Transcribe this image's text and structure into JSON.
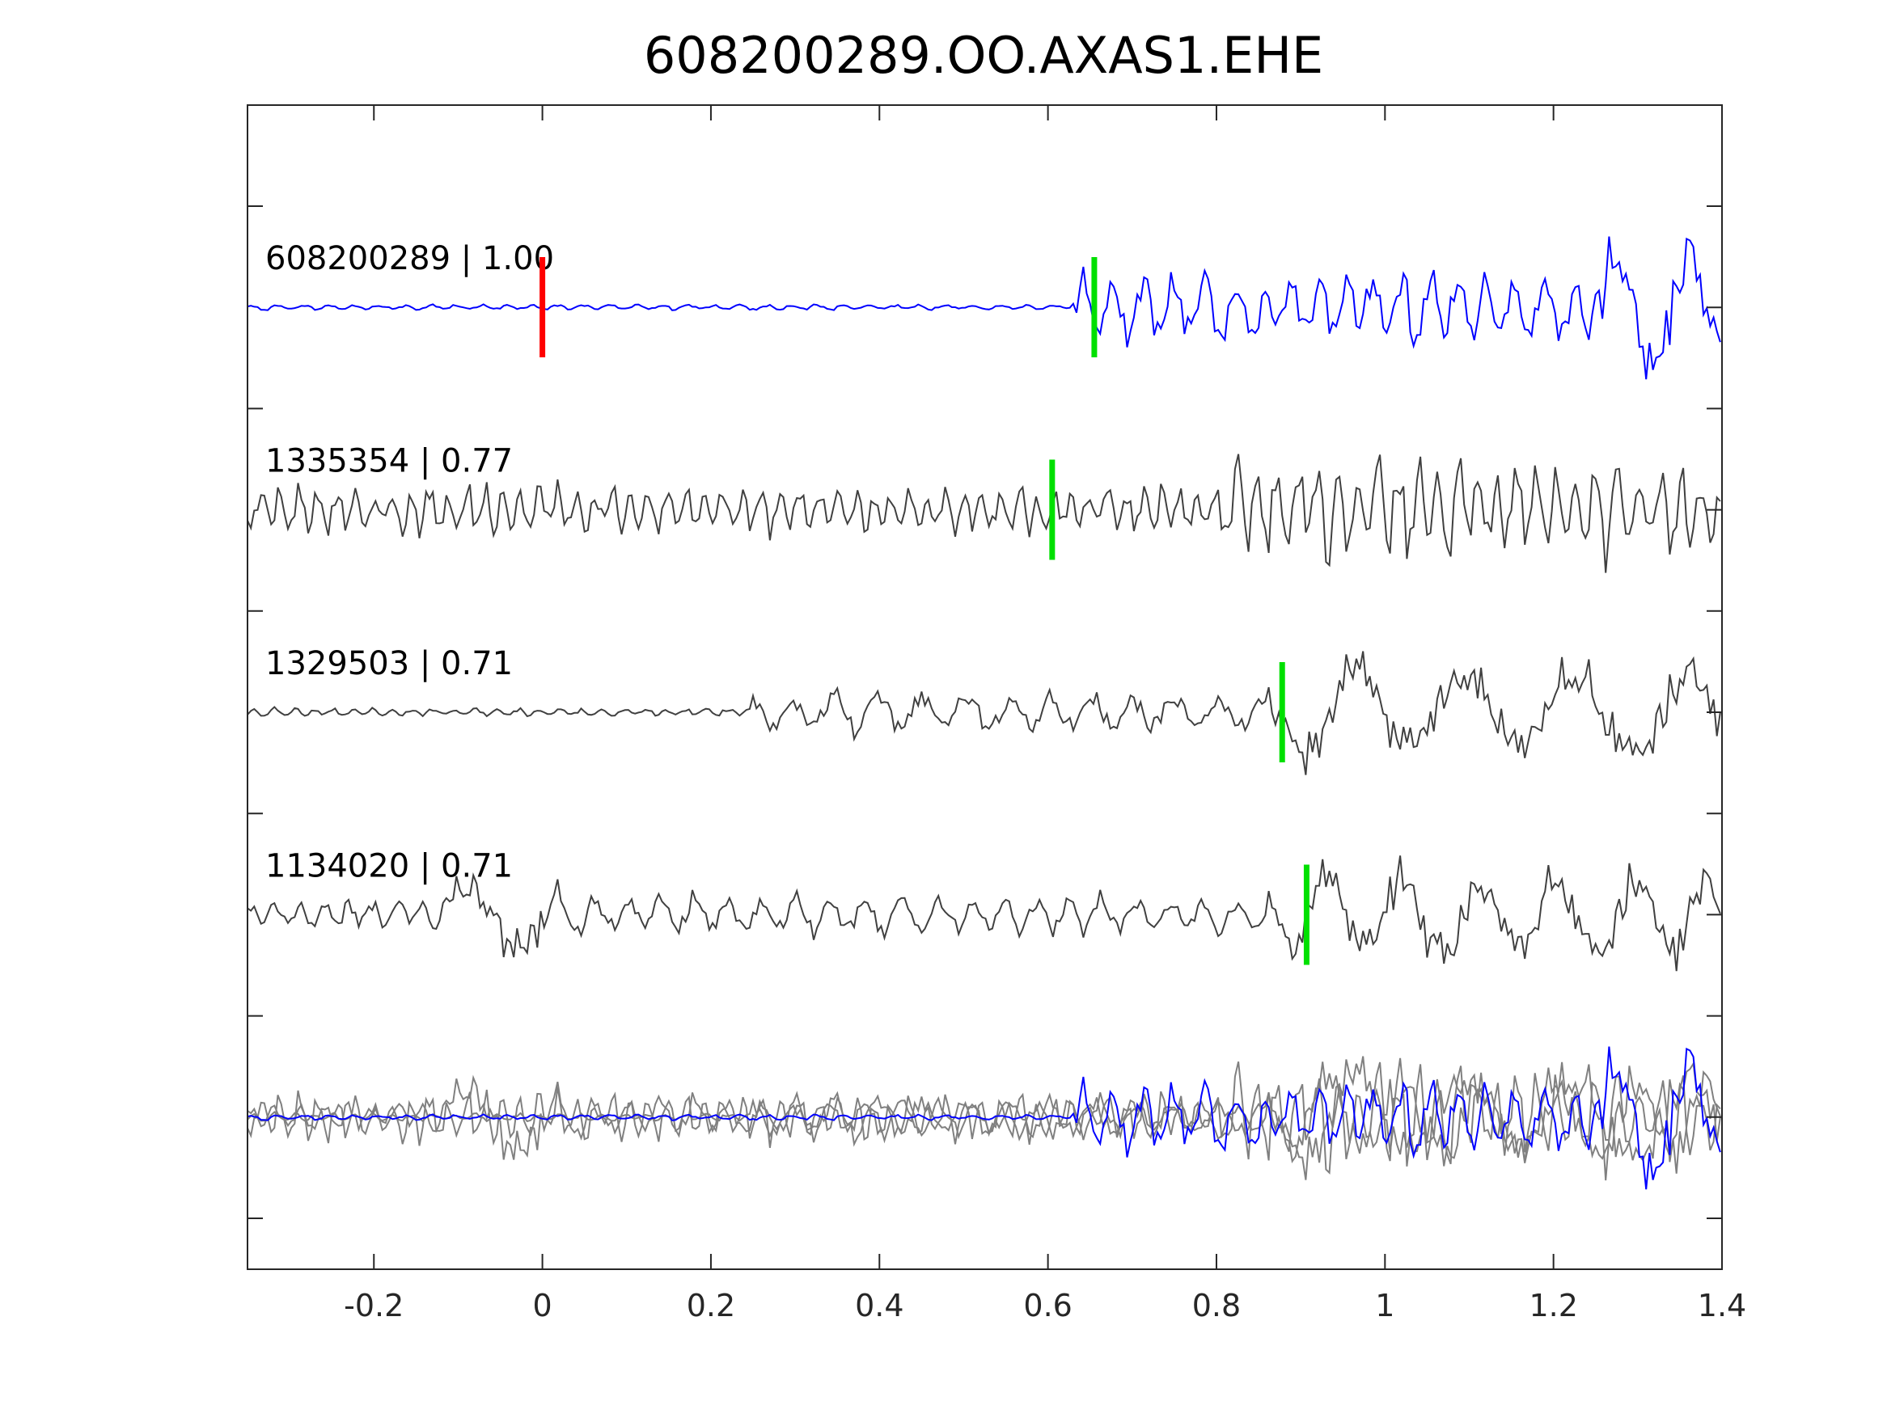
{
  "chart_data": {
    "type": "line",
    "title": "608200289.OO.AXAS1.EHE",
    "xlabel": "",
    "ylabel": "",
    "xlim": [
      -0.35,
      1.4
    ],
    "xticks": [
      -0.2,
      0,
      0.2,
      0.4,
      0.6,
      0.8,
      1,
      1.2,
      1.4
    ],
    "xtick_labels": [
      "-0.2",
      "0",
      "0.2",
      "0.4",
      "0.6",
      "0.8",
      "1",
      "1.2",
      "1.4"
    ],
    "grid": false,
    "colors": {
      "reference": "#0000ff",
      "neighbor": "#404040",
      "stack_neighbor": "#808080",
      "origin_pick": "#ff0000",
      "phase_pick": "#00e000",
      "axis": "#262626"
    },
    "traces": [
      {
        "label": "608200289 | 1.00",
        "color": "#0000ff",
        "seed": 11,
        "origin_pick": 0.0,
        "phase_pick": 0.655,
        "segments": [
          {
            "t0": -0.35,
            "t1": 0.63,
            "amp": 0.04,
            "period": 0.03
          },
          {
            "t0": 0.63,
            "t1": 1.25,
            "amp": 0.55,
            "period": 0.034
          },
          {
            "t0": 1.25,
            "t1": 1.4,
            "amp": 0.95,
            "period": 0.09
          }
        ]
      },
      {
        "label": "1335354 | 0.77",
        "color": "#404040",
        "seed": 23,
        "phase_pick": 0.605,
        "segments": [
          {
            "t0": -0.35,
            "t1": 0.8,
            "amp": 0.35,
            "period": 0.022
          },
          {
            "t0": 0.8,
            "t1": 1.4,
            "amp": 0.75,
            "period": 0.024
          }
        ]
      },
      {
        "label": "1329503 | 0.71",
        "color": "#404040",
        "seed": 37,
        "phase_pick": 0.878,
        "segments": [
          {
            "t0": -0.35,
            "t1": 0.25,
            "amp": 0.06,
            "period": 0.025
          },
          {
            "t0": 0.25,
            "t1": 0.86,
            "amp": 0.3,
            "period": 0.05
          },
          {
            "t0": 0.86,
            "t1": 1.4,
            "amp": 0.75,
            "period": 0.13
          }
        ]
      },
      {
        "label": "1134020 | 0.71",
        "color": "#404040",
        "seed": 51,
        "phase_pick": 0.907,
        "segments": [
          {
            "t0": -0.35,
            "t1": -0.12,
            "amp": 0.2,
            "period": 0.03
          },
          {
            "t0": -0.12,
            "t1": 0.02,
            "amp": 0.7,
            "period": 0.12
          },
          {
            "t0": 0.02,
            "t1": 0.88,
            "amp": 0.28,
            "period": 0.04
          },
          {
            "t0": 0.88,
            "t1": 1.4,
            "amp": 0.7,
            "period": 0.09
          }
        ]
      }
    ],
    "stack": {
      "description_order": [
        1,
        2,
        3,
        0
      ]
    }
  }
}
